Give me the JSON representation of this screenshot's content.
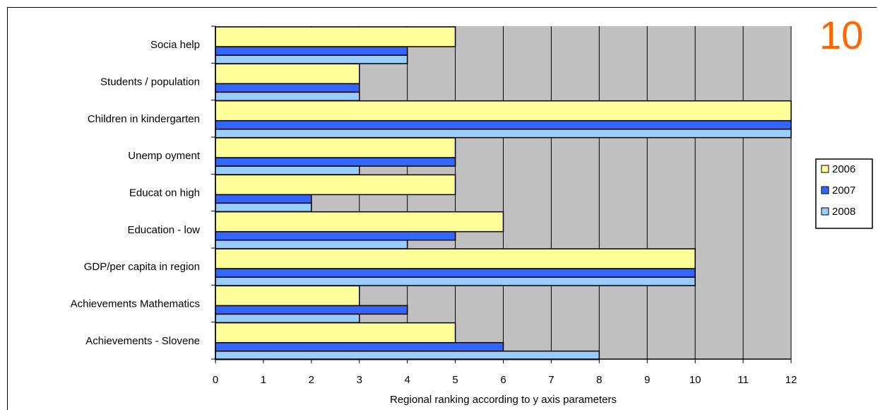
{
  "corner_number": "10",
  "chart_data": {
    "type": "bar",
    "orientation": "horizontal",
    "categories": [
      "Socia help",
      "Students / population",
      "Children in kindergarten",
      "Unemp oyment",
      "Educat on   high",
      "Education - low",
      "GDP/per capita in region",
      "Achievements    Mathematics",
      "Achievements - Slovene"
    ],
    "series": [
      {
        "name": "2006",
        "color": "#ffff99",
        "values": [
          5,
          3,
          12,
          5,
          5,
          6,
          10,
          3,
          5
        ]
      },
      {
        "name": "2007",
        "color": "#3366ff",
        "values": [
          4,
          3,
          12,
          5,
          2,
          5,
          10,
          4,
          6
        ]
      },
      {
        "name": "2008",
        "color": "#99ccff",
        "values": [
          4,
          3,
          12,
          3,
          2,
          4,
          10,
          3,
          8
        ]
      }
    ],
    "xlabel": "Regional ranking according to y axis parameters",
    "xlim": [
      0,
      12
    ],
    "xticks": [
      "0",
      "1",
      "2",
      "3",
      "4",
      "5",
      "6",
      "7",
      "8",
      "9",
      "10",
      "11",
      "12"
    ],
    "grid": true,
    "plot_background": "#c0c0c0",
    "legend_position": "right"
  }
}
